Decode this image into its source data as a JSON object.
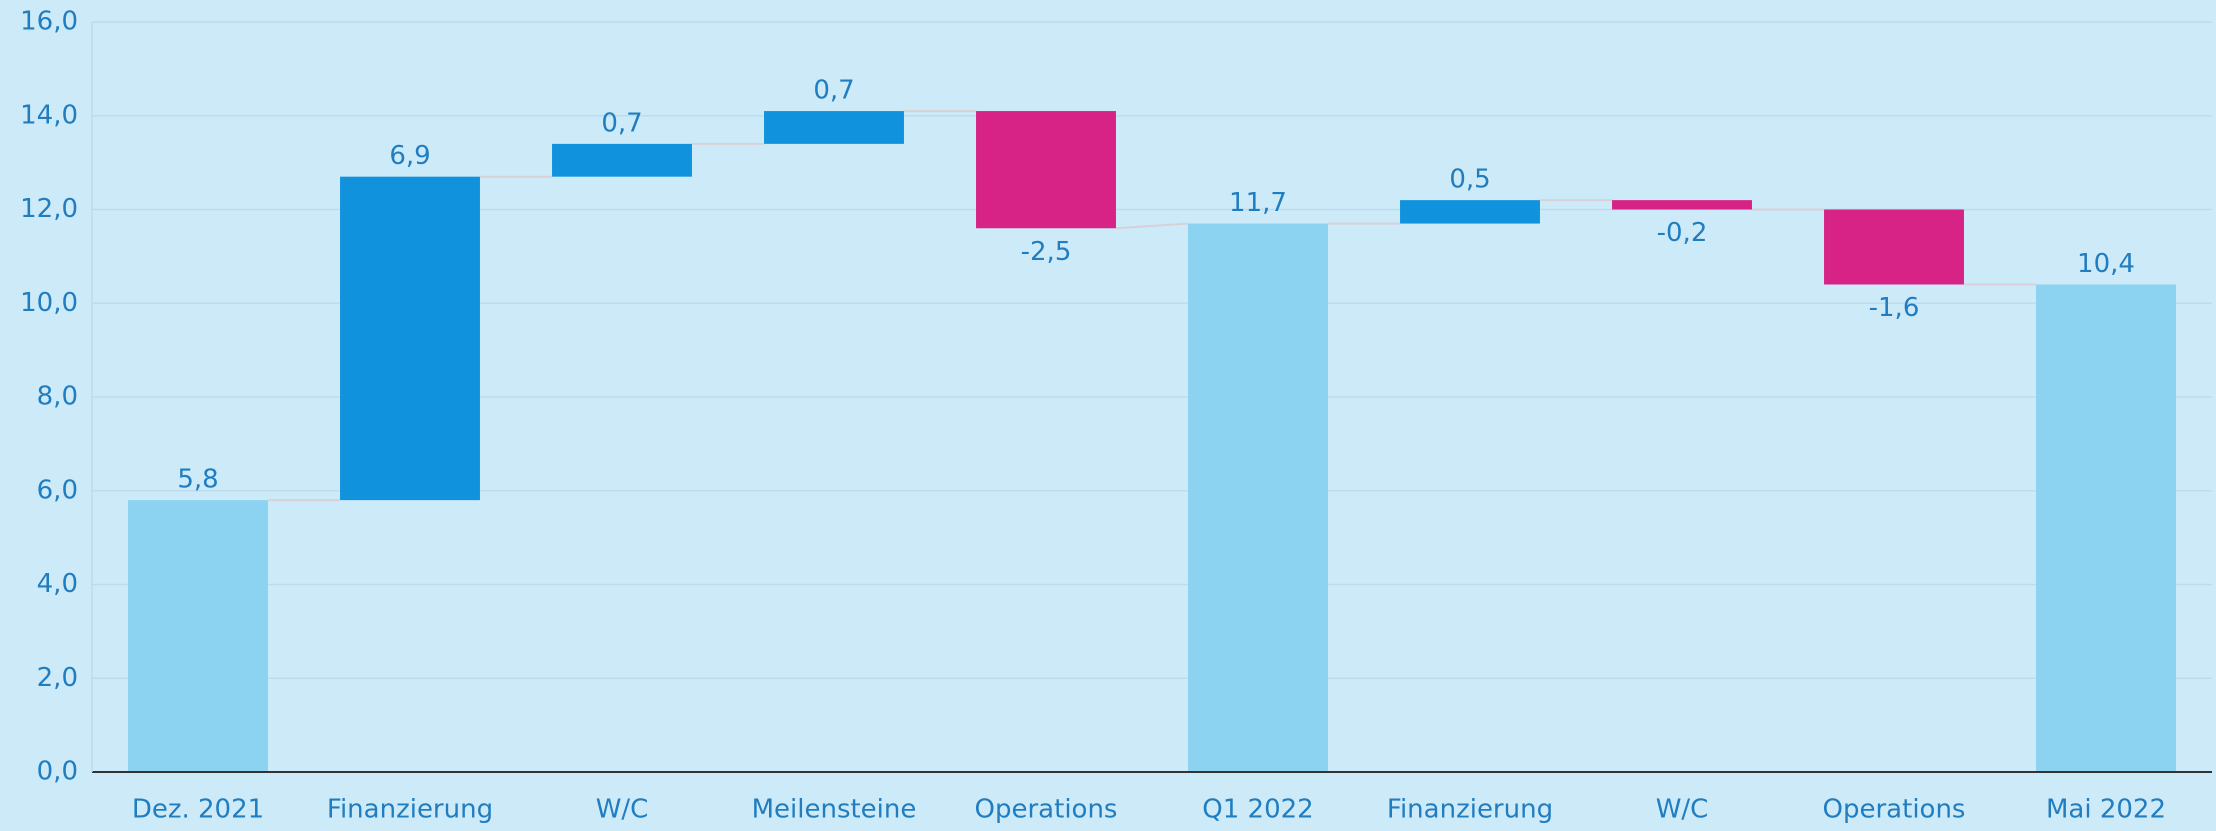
{
  "chart_data": {
    "type": "waterfall",
    "categories": [
      "Dez. 2021",
      "Finanzierung",
      "W/C",
      "Meilensteine",
      "Operations",
      "Q1 2022",
      "Finanzierung",
      "W/C",
      "Operations",
      "Mai 2022"
    ],
    "values": [
      5.8,
      6.9,
      0.7,
      0.7,
      -2.5,
      11.7,
      0.5,
      -0.2,
      -1.6,
      10.4
    ],
    "value_labels": [
      "5,8",
      "6,9",
      "0,7",
      "0,7",
      "-2,5",
      "11,7",
      "0,5",
      "-0,2",
      "-1,6",
      "10,4"
    ],
    "is_total": [
      true,
      false,
      false,
      false,
      false,
      true,
      false,
      false,
      false,
      true
    ],
    "colors": {
      "total": "#8bd3f0",
      "increase": "#1192dc",
      "decrease": "#d62385"
    },
    "ylim": [
      0,
      16
    ],
    "yticks": [
      {
        "value": 0,
        "label": "0,0"
      },
      {
        "value": 2,
        "label": "2,0"
      },
      {
        "value": 4,
        "label": "4,0"
      },
      {
        "value": 6,
        "label": "6,0"
      },
      {
        "value": 8,
        "label": "8,0"
      },
      {
        "value": 10,
        "label": "10,0"
      },
      {
        "value": 12,
        "label": "12,0"
      },
      {
        "value": 14,
        "label": "14,0"
      },
      {
        "value": 16,
        "label": "16,0"
      }
    ],
    "grid": true
  }
}
